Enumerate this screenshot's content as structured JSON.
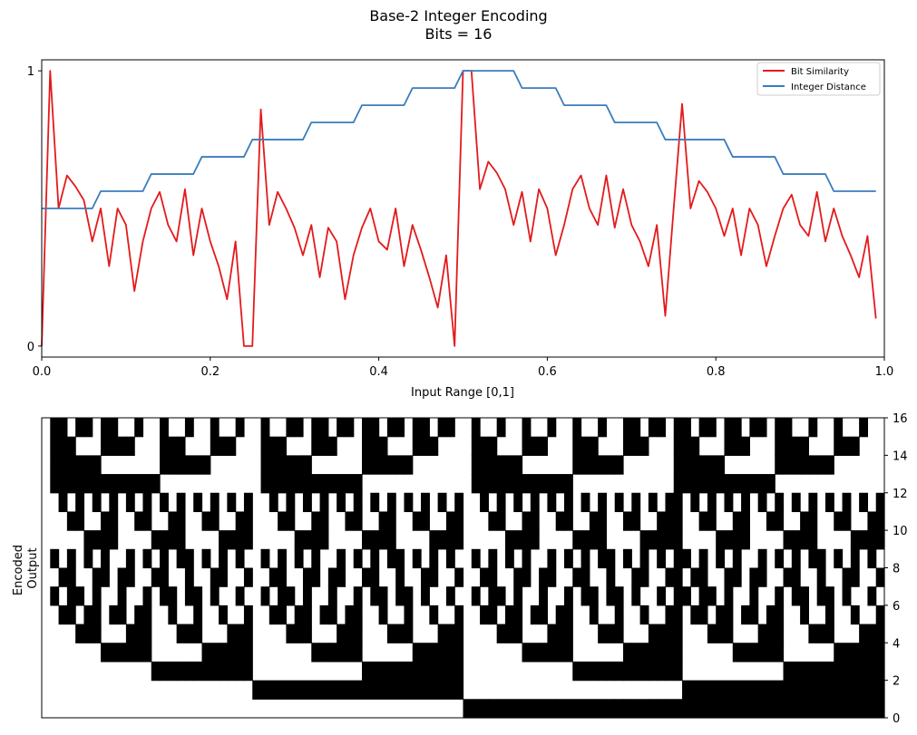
{
  "figure": {
    "title_line1": "Base-2 Integer Encoding",
    "title_line2": "Bits = 16"
  },
  "chart_data": [
    {
      "type": "line",
      "title": "Base-2 Integer Encoding\nBits = 16",
      "xlabel": "Input Range [0,1]",
      "ylabel": "",
      "xlim": [
        0,
        1.0
      ],
      "ylim": [
        -0.04,
        1.04
      ],
      "xticks": [
        0.0,
        0.2,
        0.4,
        0.6,
        0.8,
        1.0
      ],
      "xtick_labels": [
        "0.0",
        "0.2",
        "0.4",
        "0.6",
        "0.8",
        "1.0"
      ],
      "yticks": [
        0,
        1
      ],
      "ytick_labels": [
        "0",
        "1"
      ],
      "legend_position": "top-right",
      "grid": false,
      "x": [
        0.0,
        0.01,
        0.02,
        0.03,
        0.04,
        0.05,
        0.06,
        0.07,
        0.08,
        0.09,
        0.1,
        0.11,
        0.12,
        0.13,
        0.14,
        0.15,
        0.16,
        0.17,
        0.18,
        0.19,
        0.2,
        0.21,
        0.22,
        0.23,
        0.24,
        0.25,
        0.26,
        0.27,
        0.28,
        0.29,
        0.3,
        0.31,
        0.32,
        0.33,
        0.34,
        0.35,
        0.36,
        0.37,
        0.38,
        0.39,
        0.4,
        0.41,
        0.42,
        0.43,
        0.44,
        0.45,
        0.46,
        0.47,
        0.48,
        0.49,
        0.5,
        0.51,
        0.52,
        0.53,
        0.54,
        0.55,
        0.56,
        0.57,
        0.58,
        0.59,
        0.6,
        0.61,
        0.62,
        0.63,
        0.64,
        0.65,
        0.66,
        0.67,
        0.68,
        0.69,
        0.7,
        0.71,
        0.72,
        0.73,
        0.74,
        0.75,
        0.76,
        0.77,
        0.78,
        0.79,
        0.8,
        0.81,
        0.82,
        0.83,
        0.84,
        0.85,
        0.86,
        0.87,
        0.88,
        0.89,
        0.9,
        0.91,
        0.92,
        0.93,
        0.94,
        0.95,
        0.96,
        0.97,
        0.98,
        0.99
      ],
      "series": [
        {
          "name": "Bit Similarity",
          "color": "#e31a1c",
          "values": [
            0.0,
            1.0,
            0.5,
            0.62,
            0.58,
            0.53,
            0.38,
            0.5,
            0.29,
            0.5,
            0.44,
            0.2,
            0.38,
            0.5,
            0.56,
            0.44,
            0.38,
            0.57,
            0.33,
            0.5,
            0.38,
            0.29,
            0.17,
            0.38,
            0.0,
            0.0,
            0.86,
            0.44,
            0.56,
            0.5,
            0.43,
            0.33,
            0.44,
            0.25,
            0.43,
            0.38,
            0.17,
            0.33,
            0.43,
            0.5,
            0.38,
            0.35,
            0.5,
            0.29,
            0.44,
            0.35,
            0.25,
            0.14,
            0.33,
            0.0,
            1.0,
            1.0,
            0.57,
            0.67,
            0.63,
            0.57,
            0.44,
            0.56,
            0.38,
            0.57,
            0.5,
            0.33,
            0.44,
            0.57,
            0.62,
            0.5,
            0.44,
            0.62,
            0.43,
            0.57,
            0.44,
            0.38,
            0.29,
            0.44,
            0.11,
            0.5,
            0.88,
            0.5,
            0.6,
            0.56,
            0.5,
            0.4,
            0.5,
            0.33,
            0.5,
            0.44,
            0.29,
            0.4,
            0.5,
            0.55,
            0.44,
            0.4,
            0.56,
            0.38,
            0.5,
            0.4,
            0.33,
            0.25,
            0.4,
            0.1
          ]
        },
        {
          "name": "Integer Distance",
          "color": "#3a7dbb",
          "values": [
            0.5,
            0.5,
            0.5,
            0.5,
            0.5,
            0.5,
            0.5,
            0.5625,
            0.5625,
            0.5625,
            0.5625,
            0.5625,
            0.5625,
            0.625,
            0.625,
            0.625,
            0.625,
            0.625,
            0.625,
            0.6875,
            0.6875,
            0.6875,
            0.6875,
            0.6875,
            0.6875,
            0.75,
            0.75,
            0.75,
            0.75,
            0.75,
            0.75,
            0.75,
            0.8125,
            0.8125,
            0.8125,
            0.8125,
            0.8125,
            0.8125,
            0.875,
            0.875,
            0.875,
            0.875,
            0.875,
            0.875,
            0.9375,
            0.9375,
            0.9375,
            0.9375,
            0.9375,
            0.9375,
            1.0,
            1.0,
            1.0,
            1.0,
            1.0,
            1.0,
            1.0,
            0.9375,
            0.9375,
            0.9375,
            0.9375,
            0.9375,
            0.875,
            0.875,
            0.875,
            0.875,
            0.875,
            0.875,
            0.8125,
            0.8125,
            0.8125,
            0.8125,
            0.8125,
            0.8125,
            0.75,
            0.75,
            0.75,
            0.75,
            0.75,
            0.75,
            0.75,
            0.75,
            0.6875,
            0.6875,
            0.6875,
            0.6875,
            0.6875,
            0.6875,
            0.625,
            0.625,
            0.625,
            0.625,
            0.625,
            0.625,
            0.5625,
            0.5625,
            0.5625,
            0.5625,
            0.5625,
            0.5625
          ]
        }
      ]
    },
    {
      "type": "heatmap",
      "ylabel": "Encoded\nOutput",
      "colormap": "binary",
      "color_zero": "#ffffff",
      "color_one": "#000000",
      "n_columns": 100,
      "n_bits": 16,
      "input_start": 0.0,
      "input_step": 0.01,
      "integer_max": 65535,
      "row_order": "bit 0 (least significant) at top, bit 15 (most significant) at bottom",
      "ylim": [
        0,
        16
      ],
      "yticks": [
        0,
        2,
        4,
        6,
        8,
        10,
        12,
        14,
        16
      ],
      "ytick_labels": [
        "0",
        "2",
        "4",
        "6",
        "8",
        "10",
        "12",
        "14",
        "16"
      ],
      "ytick_side": "right",
      "xticks": []
    }
  ]
}
